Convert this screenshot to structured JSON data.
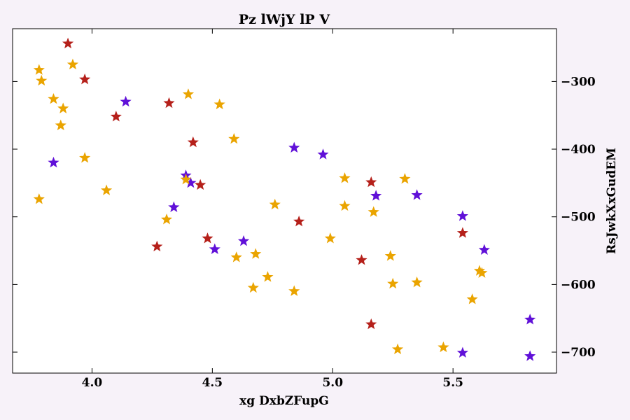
{
  "chart_data": {
    "type": "scatter",
    "title": "Pz lWjY lP V",
    "xlabel": "xg DxbZFupG",
    "ylabel": "RsJwkXxGudEM",
    "xlim": [
      3.67,
      5.93
    ],
    "ylim": [
      -731,
      -222
    ],
    "xticks": [
      4.0,
      4.5,
      5.0,
      5.5
    ],
    "xtick_labels": [
      "4.0",
      "4.5",
      "5.0",
      "5.5"
    ],
    "yticks": [
      -300,
      -400,
      -500,
      -600,
      -700
    ],
    "ytick_labels": [
      "−300",
      "−400",
      "−500",
      "−600",
      "−700"
    ],
    "y_axis_side": "right",
    "grid": false,
    "marker": "star",
    "series": [
      {
        "color": "#b5201a",
        "points": [
          [
            3.9,
            -244
          ],
          [
            3.97,
            -297
          ],
          [
            4.1,
            -352
          ],
          [
            4.32,
            -332
          ],
          [
            4.42,
            -390
          ],
          [
            4.45,
            -453
          ],
          [
            4.27,
            -544
          ],
          [
            4.48,
            -532
          ],
          [
            4.86,
            -507
          ],
          [
            5.12,
            -564
          ],
          [
            5.16,
            -449
          ],
          [
            5.16,
            -659
          ],
          [
            5.54,
            -524
          ]
        ]
      },
      {
        "color": "#6010d8",
        "points": [
          [
            4.14,
            -330
          ],
          [
            3.84,
            -420
          ],
          [
            4.34,
            -486
          ],
          [
            4.39,
            -439
          ],
          [
            4.41,
            -450
          ],
          [
            4.51,
            -548
          ],
          [
            4.63,
            -536
          ],
          [
            4.84,
            -398
          ],
          [
            4.96,
            -408
          ],
          [
            5.18,
            -469
          ],
          [
            5.35,
            -468
          ],
          [
            5.54,
            -499
          ],
          [
            5.63,
            -549
          ],
          [
            5.54,
            -701
          ],
          [
            5.82,
            -652
          ],
          [
            5.82,
            -706
          ]
        ]
      },
      {
        "color": "#eaa400",
        "points": [
          [
            3.78,
            -283
          ],
          [
            3.79,
            -299
          ],
          [
            3.84,
            -326
          ],
          [
            3.88,
            -340
          ],
          [
            3.87,
            -365
          ],
          [
            3.92,
            -275
          ],
          [
            3.97,
            -413
          ],
          [
            3.78,
            -474
          ],
          [
            4.06,
            -461
          ],
          [
            4.31,
            -504
          ],
          [
            4.39,
            -445
          ],
          [
            4.4,
            -319
          ],
          [
            4.53,
            -334
          ],
          [
            4.59,
            -385
          ],
          [
            4.6,
            -560
          ],
          [
            4.68,
            -555
          ],
          [
            4.67,
            -605
          ],
          [
            4.73,
            -589
          ],
          [
            4.76,
            -482
          ],
          [
            4.84,
            -610
          ],
          [
            4.99,
            -532
          ],
          [
            5.05,
            -443
          ],
          [
            5.05,
            -484
          ],
          [
            5.17,
            -493
          ],
          [
            5.24,
            -558
          ],
          [
            5.25,
            -599
          ],
          [
            5.3,
            -444
          ],
          [
            5.35,
            -597
          ],
          [
            5.27,
            -696
          ],
          [
            5.46,
            -693
          ],
          [
            5.58,
            -622
          ],
          [
            5.61,
            -580
          ],
          [
            5.62,
            -583
          ]
        ]
      }
    ]
  }
}
